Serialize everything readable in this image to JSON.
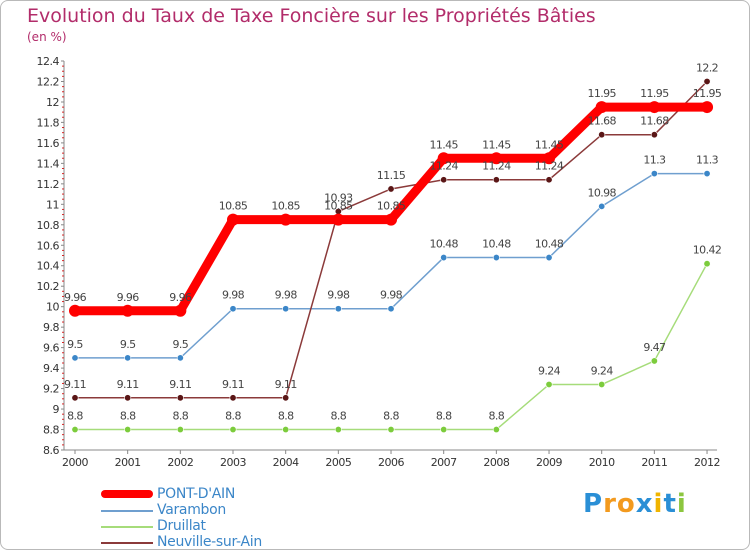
{
  "header": {
    "title": "Evolution du Taux de Taxe Foncière sur les Propriétés Bâties",
    "unit": "(en %)"
  },
  "logo": {
    "text": "Proxiti",
    "letters": [
      {
        "char": "P",
        "color": "#2a8fd6"
      },
      {
        "char": "r",
        "color": "#f39a1e"
      },
      {
        "char": "o",
        "color": "#f39a1e"
      },
      {
        "char": "x",
        "color": "#2a8fd6"
      },
      {
        "char": "i",
        "color": "#f0b400"
      },
      {
        "char": "t",
        "color": "#2a8fd6"
      },
      {
        "char": "i",
        "color": "#8cc63f"
      }
    ]
  },
  "chart_data": {
    "type": "line",
    "title": "Evolution du Taux de Taxe Foncière sur les Propriétés Bâties",
    "ylabel": "(en %)",
    "xlabel": "",
    "x": [
      "2000",
      "2001",
      "2002",
      "2003",
      "2004",
      "2005",
      "2006",
      "2007",
      "2008",
      "2009",
      "2010",
      "2011",
      "2012"
    ],
    "ylim": [
      8.6,
      12.4
    ],
    "yticks": [
      "8.6",
      "8.8",
      "9",
      "9.2",
      "9.4",
      "9.6",
      "9.8",
      "10",
      "10.2",
      "10.4",
      "10.6",
      "10.8",
      "11",
      "11.2",
      "11.4",
      "11.6",
      "11.8",
      "12",
      "12.2",
      "12.4"
    ],
    "grid": false,
    "legend_position": "bottom-left",
    "series": [
      {
        "name": "PONT-D'AIN",
        "color": "#ff0000",
        "labelColor": "#555555",
        "emphasis": true,
        "values": [
          9.96,
          9.96,
          9.96,
          10.85,
          10.85,
          10.85,
          10.85,
          11.45,
          11.45,
          11.45,
          11.95,
          11.95,
          11.95
        ],
        "labels": [
          "9.96",
          "9.96",
          "9.96",
          "10.85",
          "10.85",
          "10.85",
          "10.85",
          "11.45",
          "11.45",
          "11.45",
          "11.95",
          "11.95",
          "11.95"
        ]
      },
      {
        "name": "Varambon",
        "color": "#6f9fcf",
        "markerColor": "#3b86c8",
        "values": [
          9.5,
          9.5,
          9.5,
          9.98,
          9.98,
          9.98,
          9.98,
          10.48,
          10.48,
          10.48,
          10.98,
          11.3,
          11.3
        ],
        "labels": [
          "9.5",
          "9.5",
          "9.5",
          "9.98",
          "9.98",
          "9.98",
          "9.98",
          "10.48",
          "10.48",
          "10.48",
          "10.98",
          "11.3",
          "11.3"
        ]
      },
      {
        "name": "Druillat",
        "color": "#a6dc7a",
        "markerColor": "#7ccc3c",
        "values": [
          8.8,
          8.8,
          8.8,
          8.8,
          8.8,
          8.8,
          8.8,
          8.8,
          8.8,
          9.24,
          9.24,
          9.47,
          10.42
        ],
        "labels": [
          "8.8",
          "8.8",
          "8.8",
          "8.8",
          "8.8",
          "8.8",
          "8.8",
          "8.8",
          "8.8",
          "9.24",
          "9.24",
          "9.47",
          "10.42"
        ]
      },
      {
        "name": "Neuville-sur-Ain",
        "color": "#8b3a3a",
        "markerColor": "#5a1616",
        "values": [
          9.11,
          9.11,
          9.11,
          9.11,
          9.11,
          10.93,
          11.15,
          11.24,
          11.24,
          11.24,
          11.68,
          11.68,
          12.2
        ],
        "labels": [
          "9.11",
          "9.11",
          "9.11",
          "9.11",
          "9.11",
          "10.93",
          "11.15",
          "11.24",
          "11.24",
          "11.24",
          "11.68",
          "11.68",
          "12.2"
        ]
      }
    ]
  }
}
